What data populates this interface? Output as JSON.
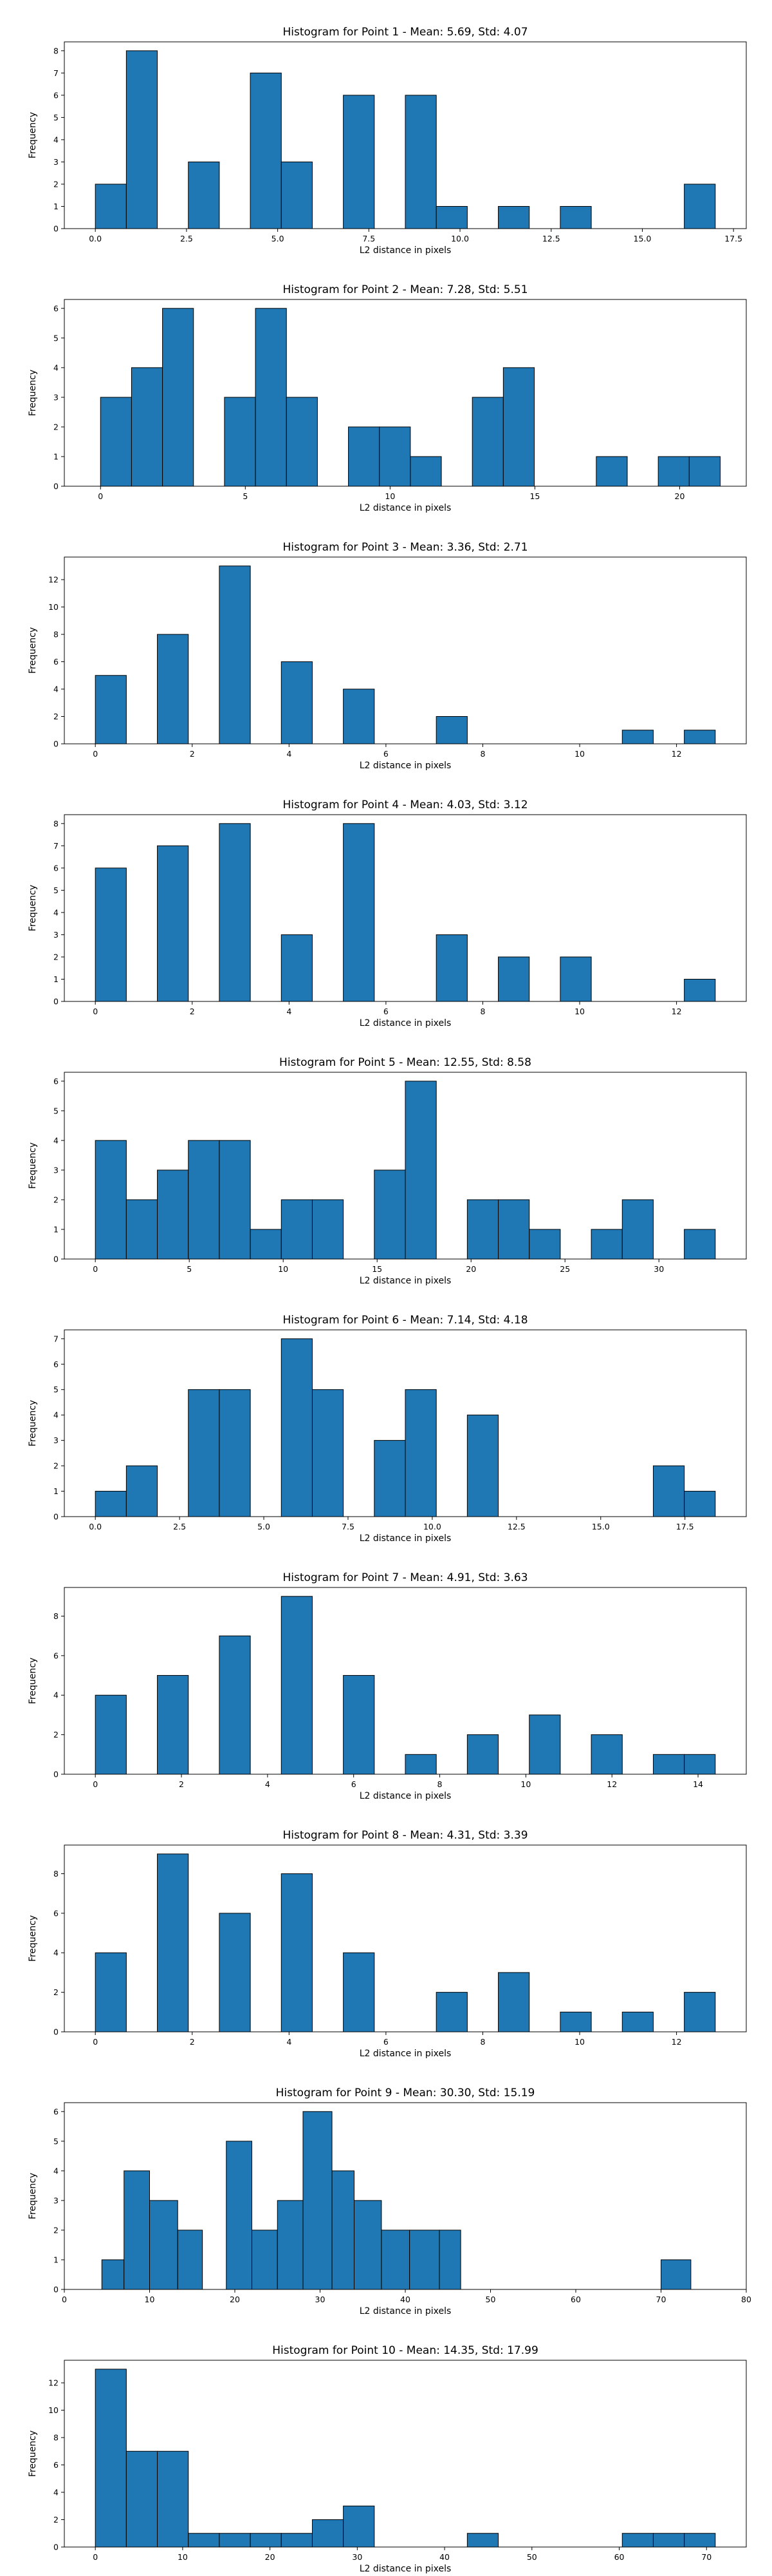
{
  "colors": {
    "bar_fill": "#1f77b4",
    "bar_edge": "#000000",
    "background": "#ffffff"
  },
  "chart_data": [
    {
      "type": "bar",
      "title": "Histogram for Point 1 - Mean: 5.69, Std: 4.07",
      "xlabel": "L2 distance in pixels",
      "ylabel": "Frequency",
      "xlim": [
        -0.85,
        17.85
      ],
      "ylim": [
        0,
        8.4
      ],
      "xticks": [
        0.0,
        2.5,
        5.0,
        7.5,
        10.0,
        12.5,
        15.0,
        17.5
      ],
      "xtick_labels": [
        "0.0",
        "2.5",
        "5.0",
        "7.5",
        "10.0",
        "12.5",
        "15.0",
        "17.5"
      ],
      "yticks": [
        0,
        1,
        2,
        3,
        4,
        5,
        6,
        7,
        8
      ],
      "ytick_labels": [
        "0",
        "1",
        "2",
        "3",
        "4",
        "5",
        "6",
        "7",
        "8"
      ],
      "bin_edges": [
        0.0,
        0.85,
        1.7,
        2.55,
        3.4,
        4.25,
        5.1,
        5.95,
        6.8,
        7.65,
        8.5,
        9.35,
        10.2,
        11.05,
        11.9,
        12.75,
        13.6,
        14.45,
        15.3,
        16.15,
        17.0
      ],
      "values": [
        2,
        8,
        0,
        3,
        0,
        7,
        3,
        0,
        6,
        0,
        6,
        1,
        0,
        1,
        0,
        1,
        0,
        0,
        0,
        2
      ],
      "grid": false
    },
    {
      "type": "bar",
      "title": "Histogram for Point 2 - Mean: 7.28, Std: 5.51",
      "xlabel": "L2 distance in pixels",
      "ylabel": "Frequency",
      "xlim": [
        -1.25,
        22.3
      ],
      "ylim": [
        0,
        6.3
      ],
      "xticks": [
        0,
        5,
        10,
        15,
        20
      ],
      "xtick_labels": [
        "0",
        "5",
        "10",
        "15",
        "20"
      ],
      "yticks": [
        0,
        1,
        2,
        3,
        4,
        5,
        6
      ],
      "ytick_labels": [
        "0",
        "1",
        "2",
        "3",
        "4",
        "5",
        "6"
      ],
      "bin_edges": [
        0.0,
        1.07,
        2.14,
        3.21,
        4.28,
        5.35,
        6.42,
        7.49,
        8.56,
        9.63,
        10.7,
        11.77,
        12.84,
        13.91,
        14.98,
        16.05,
        17.12,
        18.19,
        19.26,
        20.33,
        21.4
      ],
      "values": [
        3,
        4,
        6,
        0,
        3,
        6,
        3,
        0,
        2,
        2,
        1,
        0,
        3,
        4,
        0,
        0,
        1,
        0,
        1,
        1
      ],
      "grid": false
    },
    {
      "type": "bar",
      "title": "Histogram for Point 3 - Mean: 3.36, Std: 2.71",
      "xlabel": "L2 distance in pixels",
      "ylabel": "Frequency",
      "xlim": [
        -0.64,
        13.44
      ],
      "ylim": [
        0,
        13.65
      ],
      "xticks": [
        0,
        2,
        4,
        6,
        8,
        10,
        12
      ],
      "xtick_labels": [
        "0",
        "2",
        "4",
        "6",
        "8",
        "10",
        "12"
      ],
      "yticks": [
        0,
        2,
        4,
        6,
        8,
        10,
        12
      ],
      "ytick_labels": [
        "0",
        "2",
        "4",
        "6",
        "8",
        "10",
        "12"
      ],
      "bin_edges": [
        0.0,
        0.64,
        1.28,
        1.92,
        2.56,
        3.2,
        3.84,
        4.48,
        5.12,
        5.76,
        6.4,
        7.04,
        7.68,
        8.32,
        8.96,
        9.6,
        10.24,
        10.88,
        11.52,
        12.16,
        12.8
      ],
      "values": [
        5,
        0,
        8,
        0,
        13,
        0,
        6,
        0,
        4,
        0,
        0,
        2,
        0,
        0,
        0,
        0,
        0,
        1,
        0,
        1
      ],
      "grid": false
    },
    {
      "type": "bar",
      "title": "Histogram for Point 4 - Mean: 4.03, Std: 3.12",
      "xlabel": "L2 distance in pixels",
      "ylabel": "Frequency",
      "xlim": [
        -0.64,
        13.44
      ],
      "ylim": [
        0,
        8.4
      ],
      "xticks": [
        0,
        2,
        4,
        6,
        8,
        10,
        12
      ],
      "xtick_labels": [
        "0",
        "2",
        "4",
        "6",
        "8",
        "10",
        "12"
      ],
      "yticks": [
        0,
        1,
        2,
        3,
        4,
        5,
        6,
        7,
        8
      ],
      "ytick_labels": [
        "0",
        "1",
        "2",
        "3",
        "4",
        "5",
        "6",
        "7",
        "8"
      ],
      "bin_edges": [
        0.0,
        0.64,
        1.28,
        1.92,
        2.56,
        3.2,
        3.84,
        4.48,
        5.12,
        5.76,
        6.4,
        7.04,
        7.68,
        8.32,
        8.96,
        9.6,
        10.24,
        10.88,
        11.52,
        12.16,
        12.8
      ],
      "values": [
        6,
        0,
        7,
        0,
        8,
        0,
        3,
        0,
        8,
        0,
        0,
        3,
        0,
        2,
        0,
        2,
        0,
        0,
        0,
        1
      ],
      "grid": false
    },
    {
      "type": "bar",
      "title": "Histogram for Point 5 - Mean: 12.55, Std: 8.58",
      "xlabel": "L2 distance in pixels",
      "ylabel": "Frequency",
      "xlim": [
        -1.65,
        34.65
      ],
      "ylim": [
        0,
        6.3
      ],
      "xticks": [
        0,
        5,
        10,
        15,
        20,
        25,
        30
      ],
      "xtick_labels": [
        "0",
        "5",
        "10",
        "15",
        "20",
        "25",
        "30"
      ],
      "yticks": [
        0,
        1,
        2,
        3,
        4,
        5,
        6
      ],
      "ytick_labels": [
        "0",
        "1",
        "2",
        "3",
        "4",
        "5",
        "6"
      ],
      "bin_edges": [
        0.0,
        1.65,
        3.3,
        4.95,
        6.6,
        8.25,
        9.9,
        11.55,
        13.2,
        14.85,
        16.5,
        18.15,
        19.8,
        21.45,
        23.1,
        24.75,
        26.4,
        28.05,
        29.7,
        31.35,
        33.0
      ],
      "values": [
        4,
        2,
        3,
        4,
        4,
        1,
        2,
        2,
        0,
        3,
        6,
        0,
        2,
        2,
        1,
        0,
        1,
        2,
        0,
        1
      ],
      "grid": false
    },
    {
      "type": "bar",
      "title": "Histogram for Point 6 - Mean: 7.14, Std: 4.18",
      "xlabel": "L2 distance in pixels",
      "ylabel": "Frequency",
      "xlim": [
        -0.92,
        19.32
      ],
      "ylim": [
        0,
        7.35
      ],
      "xticks": [
        0.0,
        2.5,
        5.0,
        7.5,
        10.0,
        12.5,
        15.0,
        17.5
      ],
      "xtick_labels": [
        "0.0",
        "2.5",
        "5.0",
        "7.5",
        "10.0",
        "12.5",
        "15.0",
        "17.5"
      ],
      "yticks": [
        0,
        1,
        2,
        3,
        4,
        5,
        6,
        7
      ],
      "ytick_labels": [
        "0",
        "1",
        "2",
        "3",
        "4",
        "5",
        "6",
        "7"
      ],
      "bin_edges": [
        0.0,
        0.92,
        1.84,
        2.76,
        3.68,
        4.6,
        5.52,
        6.44,
        7.36,
        8.28,
        9.2,
        10.12,
        11.04,
        11.96,
        12.88,
        13.8,
        14.72,
        15.64,
        16.56,
        17.48,
        18.4
      ],
      "values": [
        1,
        2,
        0,
        5,
        5,
        0,
        7,
        5,
        0,
        3,
        5,
        0,
        4,
        0,
        0,
        0,
        0,
        0,
        2,
        1
      ],
      "grid": false
    },
    {
      "type": "bar",
      "title": "Histogram for Point 7 - Mean: 4.91, Std: 3.63",
      "xlabel": "L2 distance in pixels",
      "ylabel": "Frequency",
      "xlim": [
        -0.72,
        15.12
      ],
      "ylim": [
        0,
        9.45
      ],
      "xticks": [
        0,
        2,
        4,
        6,
        8,
        10,
        12,
        14
      ],
      "xtick_labels": [
        "0",
        "2",
        "4",
        "6",
        "8",
        "10",
        "12",
        "14"
      ],
      "yticks": [
        0,
        2,
        4,
        6,
        8
      ],
      "ytick_labels": [
        "0",
        "2",
        "4",
        "6",
        "8"
      ],
      "bin_edges": [
        0.0,
        0.72,
        1.44,
        2.16,
        2.88,
        3.6,
        4.32,
        5.04,
        5.76,
        6.48,
        7.2,
        7.92,
        8.64,
        9.36,
        10.08,
        10.8,
        11.52,
        12.24,
        12.96,
        13.68,
        14.4
      ],
      "values": [
        4,
        0,
        5,
        0,
        7,
        0,
        9,
        0,
        5,
        0,
        1,
        0,
        2,
        0,
        3,
        0,
        2,
        0,
        1,
        1
      ],
      "grid": false
    },
    {
      "type": "bar",
      "title": "Histogram for Point 8 - Mean: 4.31, Std: 3.39",
      "xlabel": "L2 distance in pixels",
      "ylabel": "Frequency",
      "xlim": [
        -0.64,
        13.44
      ],
      "ylim": [
        0,
        9.45
      ],
      "xticks": [
        0,
        2,
        4,
        6,
        8,
        10,
        12
      ],
      "xtick_labels": [
        "0",
        "2",
        "4",
        "6",
        "8",
        "10",
        "12"
      ],
      "yticks": [
        0,
        2,
        4,
        6,
        8
      ],
      "ytick_labels": [
        "0",
        "2",
        "4",
        "6",
        "8"
      ],
      "bin_edges": [
        0.0,
        0.64,
        1.28,
        1.92,
        2.56,
        3.2,
        3.84,
        4.48,
        5.12,
        5.76,
        6.4,
        7.04,
        7.68,
        8.32,
        8.96,
        9.6,
        10.24,
        10.88,
        11.52,
        12.16,
        12.8
      ],
      "values": [
        4,
        0,
        9,
        0,
        6,
        0,
        8,
        0,
        4,
        0,
        0,
        2,
        0,
        3,
        0,
        1,
        0,
        1,
        0,
        2
      ],
      "grid": false
    },
    {
      "type": "bar",
      "title": "Histogram for Point 9 - Mean: 30.30, Std: 15.19",
      "xlabel": "L2 distance in pixels",
      "ylabel": "Frequency",
      "xlim": [
        0,
        80
      ],
      "ylim": [
        0,
        6.3
      ],
      "xticks": [
        0,
        10,
        20,
        30,
        40,
        50,
        60,
        70,
        80
      ],
      "xtick_labels": [
        "0",
        "10",
        "20",
        "30",
        "40",
        "50",
        "60",
        "70",
        "80"
      ],
      "yticks": [
        0,
        1,
        2,
        3,
        4,
        5,
        6
      ],
      "ytick_labels": [
        "0",
        "1",
        "2",
        "3",
        "4",
        "5",
        "6"
      ],
      "bin_edges": [
        4.4,
        7.0,
        10.0,
        13.3,
        16.2,
        19.0,
        22.0,
        25.0,
        28.0,
        31.4,
        34.0,
        37.2,
        40.5,
        44.0,
        46.5,
        49.5,
        52.2,
        55.0,
        70.0,
        73.5,
        76.4
      ],
      "values": [
        1,
        4,
        3,
        2,
        0,
        5,
        2,
        3,
        6,
        4,
        3,
        2,
        2,
        2,
        0,
        0,
        0,
        0,
        1,
        0
      ],
      "grid": false
    },
    {
      "type": "bar",
      "title": "Histogram for Point 10 - Mean: 14.35, Std: 17.99",
      "xlabel": "L2 distance in pixels",
      "ylabel": "Frequency",
      "xlim": [
        -3.55,
        74.55
      ],
      "ylim": [
        0,
        13.65
      ],
      "xticks": [
        0,
        10,
        20,
        30,
        40,
        50,
        60,
        70
      ],
      "xtick_labels": [
        "0",
        "10",
        "20",
        "30",
        "40",
        "50",
        "60",
        "70"
      ],
      "yticks": [
        0,
        2,
        4,
        6,
        8,
        10,
        12
      ],
      "ytick_labels": [
        "0",
        "2",
        "4",
        "6",
        "8",
        "10",
        "12"
      ],
      "bin_edges": [
        0.0,
        3.55,
        7.1,
        10.65,
        14.2,
        17.75,
        21.3,
        24.85,
        28.4,
        31.95,
        35.5,
        39.05,
        42.6,
        46.15,
        49.7,
        53.25,
        56.8,
        60.35,
        63.9,
        67.45,
        71.0
      ],
      "values": [
        13,
        7,
        7,
        1,
        1,
        1,
        1,
        2,
        3,
        0,
        0,
        0,
        1,
        0,
        0,
        0,
        0,
        1,
        1,
        1
      ],
      "grid": false
    }
  ]
}
